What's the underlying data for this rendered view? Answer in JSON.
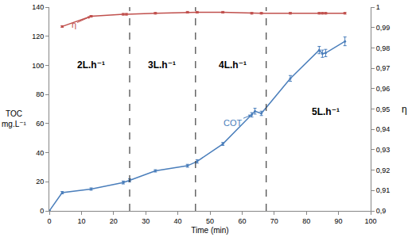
{
  "chart_data": {
    "type": "line",
    "xlabel": "Time (min)",
    "ylabel": "TOC\nmg.L⁻¹",
    "y2label": "η",
    "xlim": [
      0,
      100
    ],
    "xticks": [
      0,
      10,
      20,
      30,
      40,
      50,
      60,
      70,
      80,
      90,
      100
    ],
    "ylim": [
      0,
      140
    ],
    "yticks": [
      0,
      20,
      40,
      60,
      80,
      100,
      120,
      140
    ],
    "y2lim": [
      0.9,
      1
    ],
    "y2ticks": [
      {
        "value": 0.9,
        "label": "0,9"
      },
      {
        "value": 0.91,
        "label": "0,91"
      },
      {
        "value": 0.92,
        "label": "0,92"
      },
      {
        "value": 0.93,
        "label": "0,93"
      },
      {
        "value": 0.94,
        "label": "0,94"
      },
      {
        "value": 0.95,
        "label": "0,95"
      },
      {
        "value": 0.96,
        "label": "0,96"
      },
      {
        "value": 0.97,
        "label": "0,97"
      },
      {
        "value": 0.98,
        "label": "0,98"
      },
      {
        "value": 0.99,
        "label": "0,99"
      },
      {
        "value": 1,
        "label": "1"
      }
    ],
    "grid": false,
    "series": [
      {
        "name": "COT",
        "color": "#4a7ebb",
        "axis": "y",
        "marker": "circle",
        "x": [
          0,
          4,
          13,
          23,
          25,
          33,
          43,
          46,
          54,
          63,
          64,
          66,
          75,
          84,
          85,
          86,
          92
        ],
        "values": [
          0,
          12.5,
          15,
          19.5,
          21,
          27.5,
          31,
          34,
          46,
          66,
          68.5,
          67,
          91,
          110.5,
          108,
          108.5,
          116.5
        ],
        "error": [
          0,
          0.8,
          0.8,
          1,
          1,
          0.8,
          1,
          1.2,
          1,
          1.5,
          2,
          1.5,
          2,
          2.5,
          2.5,
          2.5,
          3
        ]
      },
      {
        "name": "η",
        "color": "#c0504d",
        "axis": "y2",
        "marker": "circle",
        "x": [
          4,
          13,
          23,
          24,
          33,
          43,
          46,
          54,
          63,
          66,
          75,
          84,
          85,
          86,
          92
        ],
        "values": [
          0.9905,
          0.9955,
          0.9965,
          0.9965,
          0.997,
          0.9975,
          0.9975,
          0.9975,
          0.997,
          0.997,
          0.997,
          0.997,
          0.997,
          0.997,
          0.997
        ],
        "error": [
          0.0004,
          0.0004,
          0.0004,
          0.0004,
          0.0004,
          0.0004,
          0.0004,
          0.0004,
          0.0004,
          0.0004,
          0.0004,
          0.0004,
          0.0004,
          0.0004,
          0.0004
        ]
      }
    ],
    "vlines": [
      25,
      45.5,
      67.5
    ],
    "regions": [
      "2L.h⁻¹",
      "3L.h⁻¹",
      "4L.h⁻¹",
      "5L.h⁻¹"
    ]
  }
}
